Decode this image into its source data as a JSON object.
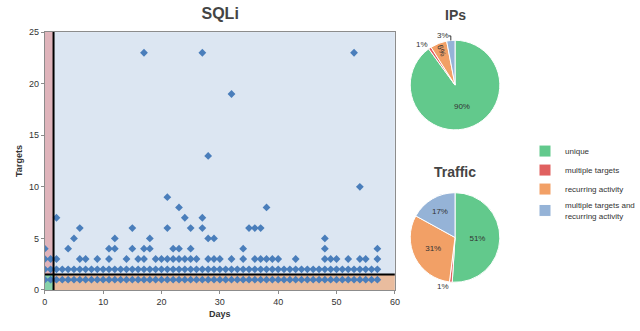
{
  "chart_data": [
    {
      "type": "scatter",
      "title": "SQLi",
      "x_label": "Days",
      "y_label": "Targets",
      "color": "#4a7ebb",
      "marker": "diamond",
      "grid": false,
      "xlim": [
        0,
        60
      ],
      "xticks": [
        0,
        10,
        20,
        30,
        40,
        50,
        60
      ],
      "ylim": [
        0,
        25
      ],
      "yticks": [
        0,
        5,
        10,
        15,
        20,
        25
      ],
      "thresholds": {
        "x": 1.5,
        "y": 1.5
      },
      "x": [
        0,
        1,
        2,
        3,
        4,
        5,
        6,
        7,
        8,
        9,
        10,
        11,
        12,
        13,
        14,
        15,
        16,
        17,
        18,
        19,
        20,
        21,
        22,
        23,
        24,
        25,
        26,
        27,
        28,
        29,
        30,
        31,
        32,
        33,
        34,
        35,
        36,
        37,
        38,
        39,
        40,
        41,
        42,
        43,
        44,
        45,
        46,
        47,
        48,
        49,
        50,
        51,
        52,
        53,
        54,
        55,
        56,
        57,
        0,
        1,
        2,
        3,
        4,
        5,
        6,
        7,
        8,
        9,
        10,
        11,
        12,
        13,
        14,
        15,
        16,
        17,
        18,
        19,
        20,
        21,
        22,
        23,
        24,
        25,
        26,
        27,
        28,
        29,
        30,
        31,
        32,
        33,
        34,
        35,
        36,
        37,
        38,
        39,
        40,
        41,
        42,
        43,
        44,
        45,
        46,
        47,
        48,
        49,
        50,
        51,
        52,
        53,
        54,
        55,
        56,
        57,
        0,
        0,
        1,
        2,
        2,
        4,
        5,
        6,
        6,
        7,
        9,
        11,
        11,
        12,
        12,
        14,
        15,
        15,
        16,
        17,
        17,
        17,
        18,
        18,
        19,
        20,
        21,
        21,
        21,
        22,
        22,
        23,
        23,
        23,
        24,
        24,
        25,
        25,
        25,
        26,
        27,
        27,
        27,
        28,
        28,
        28,
        29,
        29,
        30,
        32,
        32,
        34,
        34,
        35,
        36,
        36,
        37,
        37,
        38,
        38,
        39,
        40,
        43,
        48,
        48,
        48,
        49,
        50,
        52,
        53,
        54,
        54,
        55,
        57,
        57
      ],
      "values": [
        1,
        1,
        1,
        1,
        1,
        1,
        1,
        1,
        1,
        1,
        1,
        1,
        1,
        1,
        1,
        1,
        1,
        1,
        1,
        1,
        1,
        1,
        1,
        1,
        1,
        1,
        1,
        1,
        1,
        1,
        1,
        1,
        1,
        1,
        1,
        1,
        1,
        1,
        1,
        1,
        1,
        1,
        1,
        1,
        1,
        1,
        1,
        1,
        1,
        1,
        1,
        1,
        1,
        1,
        1,
        1,
        1,
        1,
        2,
        2,
        2,
        2,
        2,
        2,
        2,
        2,
        2,
        2,
        2,
        2,
        2,
        2,
        2,
        2,
        2,
        2,
        2,
        2,
        2,
        2,
        2,
        2,
        2,
        2,
        2,
        2,
        2,
        2,
        2,
        2,
        2,
        2,
        2,
        2,
        2,
        2,
        2,
        2,
        2,
        2,
        2,
        2,
        2,
        2,
        2,
        2,
        2,
        2,
        2,
        2,
        2,
        2,
        2,
        2,
        2,
        2,
        4,
        3,
        3,
        7,
        3,
        4,
        5,
        6,
        3,
        3,
        3,
        4,
        3,
        5,
        4,
        3,
        6,
        4,
        3,
        23,
        4,
        3,
        5,
        4,
        3,
        3,
        9,
        6,
        3,
        4,
        3,
        8,
        4,
        3,
        7,
        3,
        6,
        4,
        3,
        3,
        23,
        7,
        6,
        13,
        5,
        3,
        5,
        3,
        3,
        19,
        3,
        4,
        3,
        6,
        6,
        3,
        6,
        3,
        8,
        3,
        3,
        3,
        3,
        5,
        4,
        3,
        3,
        3,
        3,
        23,
        10,
        3,
        3,
        4,
        3
      ]
    },
    {
      "type": "pie",
      "title": "IPs",
      "legend": "right",
      "data_labels": true,
      "categories": [
        "unique",
        "multiple targets",
        "recurring activity",
        "multiple targets and recurring activity"
      ],
      "values": [
        90,
        1,
        6,
        3
      ],
      "value_labels": [
        "90%",
        "1%",
        "6%",
        "3%"
      ],
      "colors": [
        "#62c98c",
        "#e0605f",
        "#f2a066",
        "#95b3d7"
      ]
    },
    {
      "type": "pie",
      "title": "Traffic",
      "data_labels": true,
      "categories": [
        "unique",
        "multiple targets",
        "recurring activity",
        "multiple targets and recurring activity"
      ],
      "values": [
        51,
        1,
        31,
        17
      ],
      "value_labels": [
        "51%",
        "1%",
        "31%",
        "17%"
      ],
      "colors": [
        "#62c98c",
        "#e0605f",
        "#f2a066",
        "#95b3d7"
      ]
    }
  ]
}
